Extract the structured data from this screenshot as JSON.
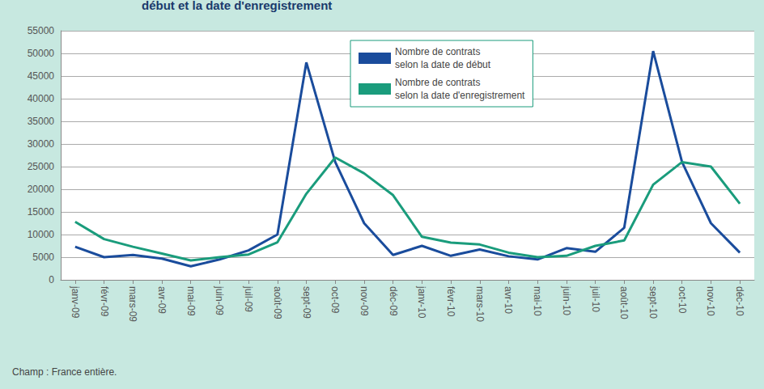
{
  "chart_data": {
    "type": "line",
    "title": "début et la date d'enregistrement",
    "annotations": [
      "Champ : France entière."
    ],
    "categories": [
      "janv-09",
      "févr-09",
      "mars-09",
      "avr-09",
      "mai-09",
      "juin-09",
      "juil-09",
      "août-09",
      "sept-09",
      "oct-09",
      "nov-09",
      "déc-09",
      "janv-10",
      "févr-10",
      "mars-10",
      "avr-10",
      "mai-10",
      "juin-10",
      "juil-10",
      "août-10",
      "sept-10",
      "oct-10",
      "nov-10",
      "déc-10"
    ],
    "series": [
      {
        "name": "Nombre de contrats\nselon la date de début",
        "color": "#1a4c9c",
        "values": [
          7300,
          5000,
          5500,
          4700,
          3000,
          4500,
          6500,
          10000,
          48000,
          26000,
          12500,
          5500,
          7500,
          5300,
          6700,
          5200,
          4500,
          7000,
          6200,
          11500,
          50500,
          26000,
          12500,
          6000
        ]
      },
      {
        "name": "Nombre de contrats\nselon la date d'enregistrement",
        "color": "#1a9c7c",
        "values": [
          12800,
          9000,
          7300,
          5800,
          4300,
          5000,
          5600,
          8300,
          19000,
          27000,
          23500,
          18700,
          9500,
          8200,
          7800,
          6000,
          5000,
          5300,
          7500,
          8700,
          21000,
          26000,
          25000,
          16800
        ]
      }
    ],
    "ylim": [
      0,
      55000
    ],
    "yticks": [
      0,
      5000,
      10000,
      15000,
      20000,
      25000,
      30000,
      35000,
      40000,
      45000,
      50000,
      55000
    ],
    "grid": true,
    "legend": "top"
  }
}
